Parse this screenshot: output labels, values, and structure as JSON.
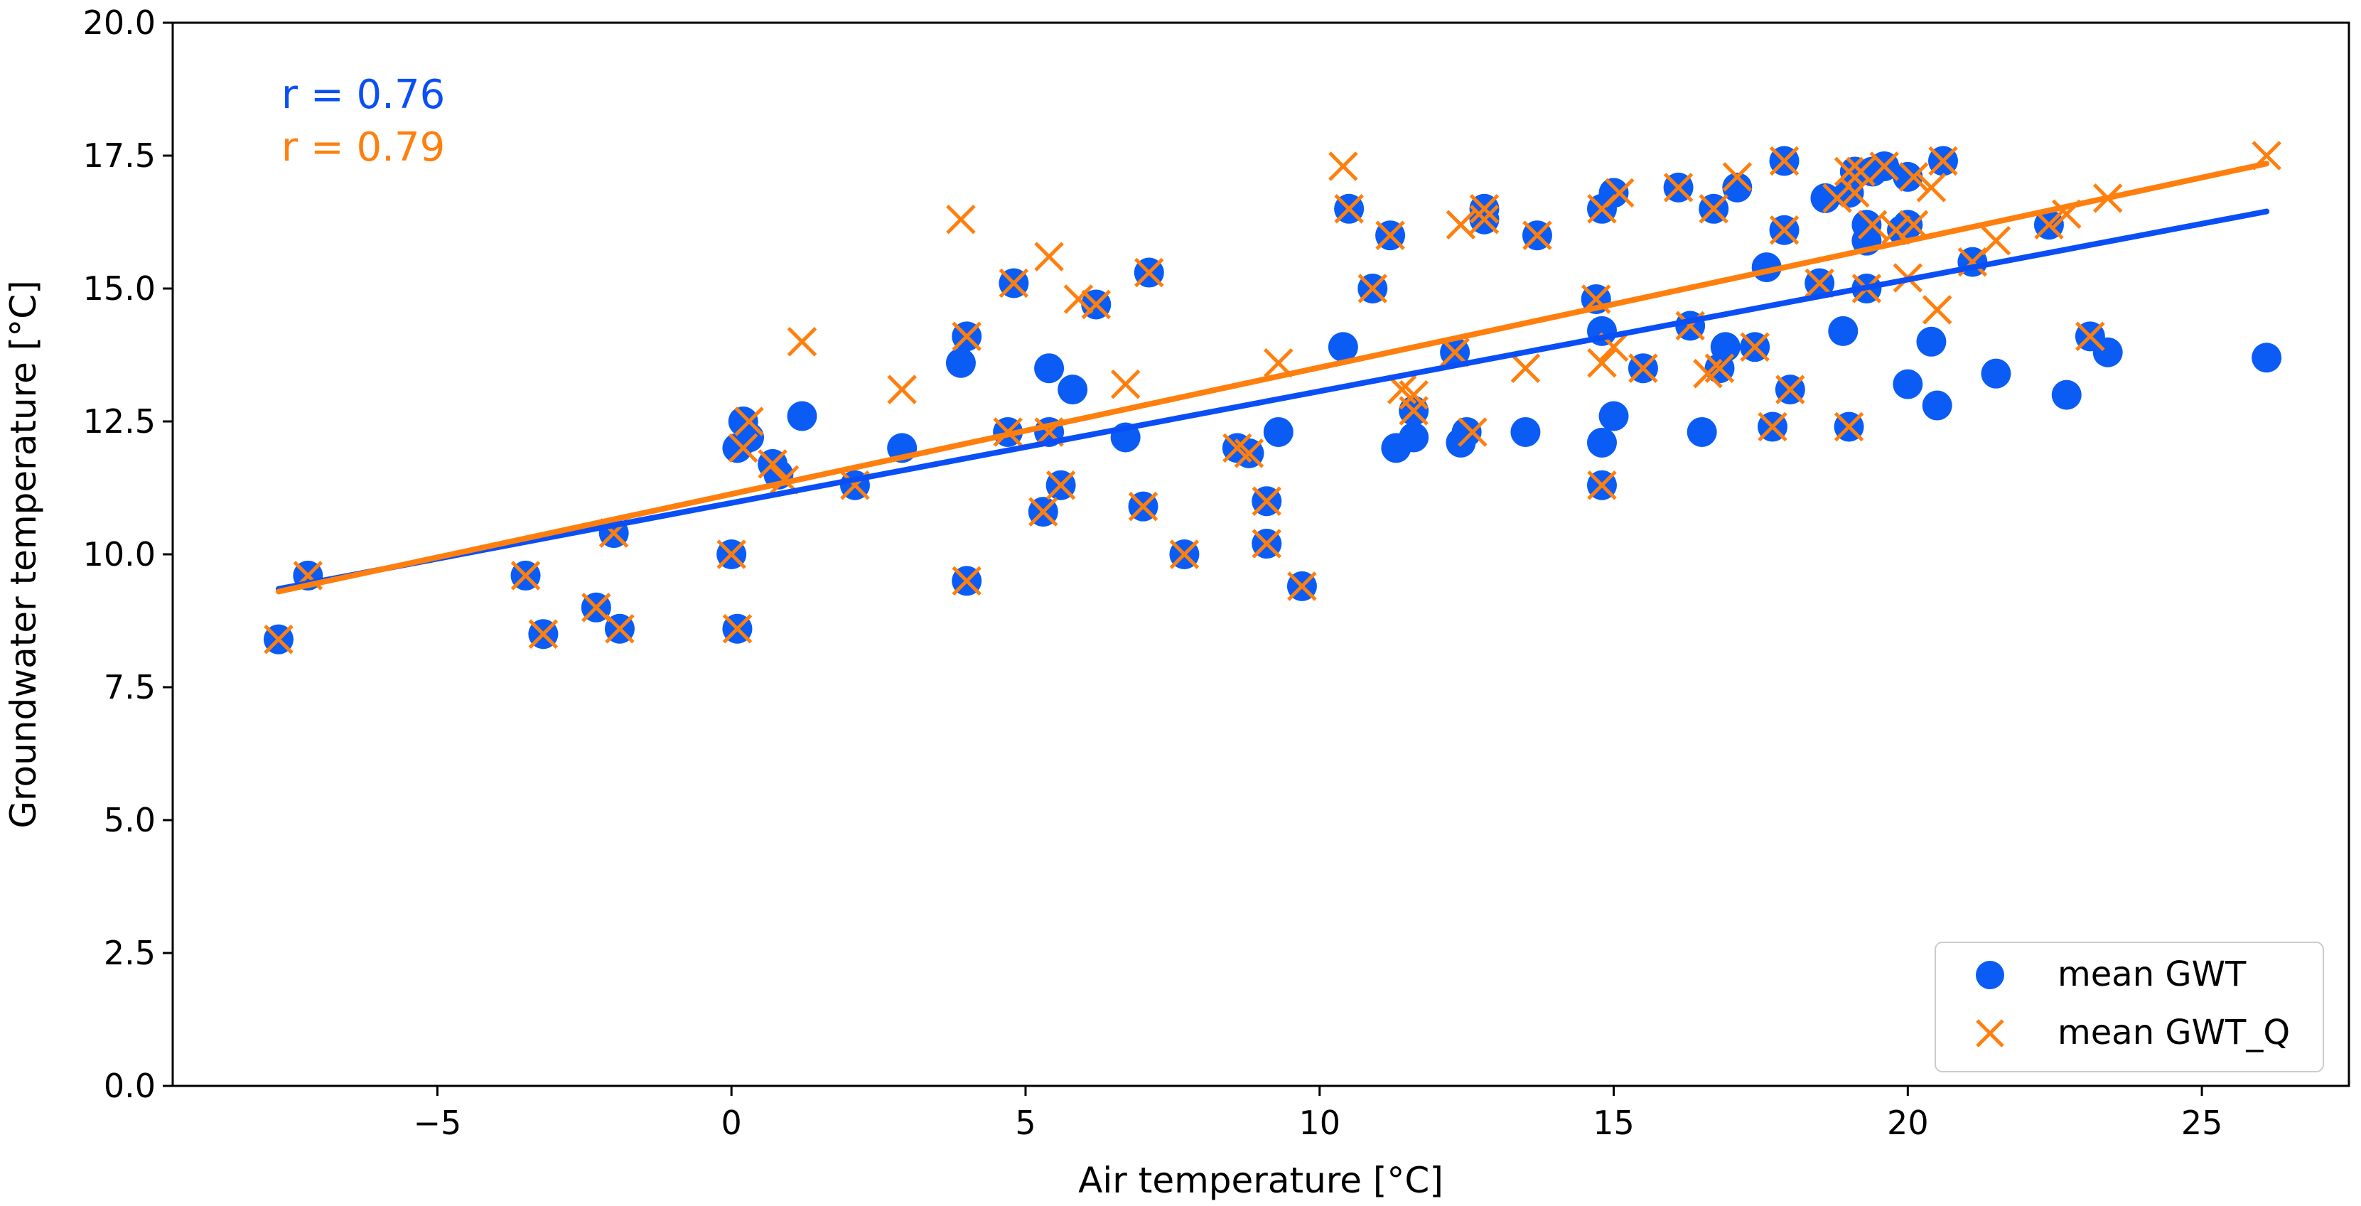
{
  "chart_data": {
    "type": "scatter",
    "xlabel": "Air temperature [°C]",
    "ylabel": "Groundwater temperature [°C]",
    "xlim": [
      -9.5,
      27.5
    ],
    "ylim": [
      0.0,
      20.0
    ],
    "xticks": [
      -5,
      0,
      5,
      10,
      15,
      20,
      25
    ],
    "xtick_labels": [
      "−5",
      "0",
      "5",
      "10",
      "15",
      "20",
      "25"
    ],
    "yticks": [
      0.0,
      2.5,
      5.0,
      7.5,
      10.0,
      12.5,
      15.0,
      17.5,
      20.0
    ],
    "ytick_labels": [
      "0.0",
      "2.5",
      "5.0",
      "7.5",
      "10.0",
      "12.5",
      "15.0",
      "17.5",
      "20.0"
    ],
    "grid": false,
    "legend_position": "bottom-right",
    "annotations": [
      {
        "text": "r = 0.76",
        "color": "#0a4ff5"
      },
      {
        "text": "r = 0.79",
        "color": "#ff7f0e"
      }
    ],
    "series": [
      {
        "name": "mean GWT",
        "marker": "circle",
        "color": "#0a5cf5",
        "x": [
          -7.7,
          -7.2,
          -3.5,
          -3.2,
          -2.3,
          -1.9,
          -2.0,
          0.0,
          0.1,
          0.1,
          0.2,
          0.3,
          0.7,
          0.8,
          1.2,
          2.1,
          2.9,
          3.9,
          4.0,
          4.0,
          4.7,
          4.8,
          5.3,
          5.4,
          5.4,
          5.6,
          5.8,
          6.2,
          6.7,
          7.0,
          7.1,
          7.7,
          8.6,
          8.8,
          9.1,
          9.1,
          9.3,
          9.7,
          10.4,
          10.5,
          10.9,
          11.2,
          11.3,
          11.6,
          11.6,
          12.3,
          12.4,
          12.5,
          12.8,
          12.8,
          13.5,
          13.7,
          14.7,
          14.8,
          14.8,
          14.8,
          14.8,
          15.0,
          15.0,
          15.5,
          16.1,
          16.3,
          16.5,
          16.7,
          16.8,
          16.9,
          17.1,
          17.4,
          17.6,
          17.7,
          17.9,
          17.9,
          18.0,
          18.5,
          18.6,
          18.9,
          19.0,
          19.0,
          19.1,
          19.3,
          19.3,
          19.3,
          19.4,
          19.6,
          19.9,
          20.0,
          20.0,
          20.0,
          20.4,
          20.5,
          20.6,
          21.1,
          21.5,
          22.4,
          22.7,
          23.1,
          23.4,
          26.1
        ],
        "y": [
          8.4,
          9.6,
          9.6,
          8.5,
          9.0,
          8.6,
          10.4,
          10.0,
          8.6,
          12.0,
          12.5,
          12.2,
          11.7,
          11.5,
          12.6,
          11.3,
          12.0,
          13.6,
          14.1,
          9.5,
          12.3,
          15.1,
          10.8,
          13.5,
          12.3,
          11.3,
          13.1,
          14.7,
          12.2,
          10.9,
          15.3,
          10.0,
          12.0,
          11.9,
          11.0,
          10.2,
          12.3,
          9.4,
          13.9,
          16.5,
          15.0,
          16.0,
          12.0,
          12.2,
          12.7,
          13.8,
          12.1,
          12.3,
          16.5,
          16.3,
          12.3,
          16.0,
          14.8,
          14.2,
          12.1,
          11.3,
          16.5,
          12.6,
          16.8,
          13.5,
          16.9,
          14.3,
          12.3,
          16.5,
          13.5,
          13.9,
          16.9,
          13.9,
          15.4,
          12.4,
          17.4,
          16.1,
          13.1,
          15.1,
          16.7,
          14.2,
          12.4,
          16.8,
          17.2,
          16.2,
          15.9,
          15.0,
          17.2,
          17.3,
          16.1,
          17.1,
          16.2,
          13.2,
          14.0,
          12.8,
          17.4,
          15.5,
          13.4,
          16.2,
          13.0,
          14.1,
          13.8,
          13.7
        ]
      },
      {
        "name": "mean GWT_Q",
        "marker": "x",
        "color": "#ff7f0e",
        "x": [
          -7.7,
          -7.2,
          -3.5,
          -3.2,
          -2.3,
          -1.9,
          -2.0,
          0.0,
          0.1,
          0.2,
          0.3,
          0.7,
          0.9,
          1.2,
          2.1,
          2.9,
          3.9,
          4.0,
          4.0,
          4.7,
          4.8,
          5.3,
          5.4,
          5.4,
          5.6,
          5.9,
          6.2,
          6.7,
          7.0,
          7.1,
          7.7,
          8.6,
          8.8,
          9.1,
          9.1,
          9.3,
          9.7,
          10.4,
          10.5,
          10.9,
          11.2,
          11.4,
          11.6,
          11.6,
          12.3,
          12.4,
          12.6,
          12.8,
          12.8,
          13.5,
          13.7,
          14.7,
          14.8,
          14.8,
          14.8,
          15.0,
          15.1,
          15.5,
          16.1,
          16.3,
          16.6,
          16.7,
          16.8,
          17.1,
          17.4,
          17.7,
          17.9,
          17.9,
          18.0,
          18.5,
          18.8,
          19.0,
          19.0,
          19.1,
          19.2,
          19.3,
          19.4,
          19.6,
          19.8,
          20.0,
          20.1,
          20.1,
          20.4,
          20.5,
          20.6,
          21.1,
          21.5,
          22.4,
          22.7,
          23.1,
          23.4,
          26.1
        ],
        "y": [
          8.4,
          9.6,
          9.6,
          8.5,
          9.0,
          8.6,
          10.4,
          10.0,
          8.6,
          12.0,
          12.5,
          11.7,
          11.4,
          14.0,
          11.3,
          13.1,
          16.3,
          14.1,
          9.5,
          12.3,
          15.1,
          10.8,
          15.6,
          12.3,
          11.3,
          14.8,
          14.7,
          13.2,
          10.9,
          15.3,
          10.0,
          12.0,
          11.9,
          11.0,
          10.2,
          13.6,
          9.4,
          17.3,
          16.5,
          15.0,
          16.0,
          13.1,
          12.7,
          13.0,
          13.8,
          16.2,
          12.3,
          16.5,
          16.3,
          13.5,
          16.0,
          14.8,
          16.5,
          13.6,
          11.3,
          13.9,
          16.8,
          13.5,
          16.9,
          14.3,
          13.4,
          16.5,
          13.5,
          17.1,
          13.9,
          12.4,
          17.4,
          16.1,
          13.1,
          15.1,
          16.7,
          17.2,
          12.4,
          16.8,
          17.2,
          15.0,
          16.2,
          17.3,
          16.1,
          15.2,
          17.1,
          16.2,
          16.9,
          14.6,
          17.4,
          15.5,
          15.9,
          16.2,
          16.4,
          14.1,
          16.7,
          17.5
        ]
      }
    ],
    "fit_lines": [
      {
        "name": "fit mean GWT",
        "color": "#0a4ff5",
        "x": [
          -7.7,
          26.1
        ],
        "y": [
          9.35,
          16.45
        ]
      },
      {
        "name": "fit mean GWT_Q",
        "color": "#ff7f0e",
        "x": [
          -7.7,
          26.1
        ],
        "y": [
          9.3,
          17.35
        ]
      }
    ]
  }
}
